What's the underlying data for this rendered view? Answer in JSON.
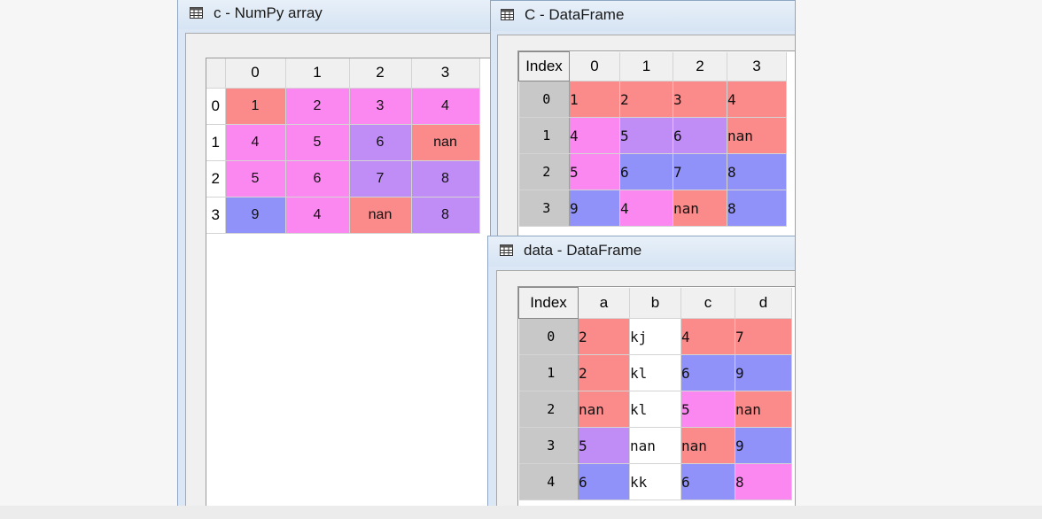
{
  "colors": {
    "red": "#fb8a8a",
    "pink": "#fb88f0",
    "purple": "#c08cf6",
    "blue": "#9191fa",
    "white": "#ffffff"
  },
  "windows": {
    "numpy": {
      "title": "c - NumPy array",
      "icon": "table-icon",
      "columns": [
        "0",
        "1",
        "2",
        "3"
      ],
      "row_labels": [
        "0",
        "1",
        "2",
        "3"
      ],
      "rows": [
        [
          {
            "v": "1",
            "c": "red"
          },
          {
            "v": "2",
            "c": "pink"
          },
          {
            "v": "3",
            "c": "pink"
          },
          {
            "v": "4",
            "c": "pink"
          }
        ],
        [
          {
            "v": "4",
            "c": "pink"
          },
          {
            "v": "5",
            "c": "pink"
          },
          {
            "v": "6",
            "c": "purple"
          },
          {
            "v": "nan",
            "c": "red"
          }
        ],
        [
          {
            "v": "5",
            "c": "pink"
          },
          {
            "v": "6",
            "c": "pink"
          },
          {
            "v": "7",
            "c": "purple"
          },
          {
            "v": "8",
            "c": "purple"
          }
        ],
        [
          {
            "v": "9",
            "c": "blue"
          },
          {
            "v": "4",
            "c": "pink"
          },
          {
            "v": "nan",
            "c": "red"
          },
          {
            "v": "8",
            "c": "purple"
          }
        ]
      ]
    },
    "cframe": {
      "title": "C - DataFrame",
      "icon": "table-icon",
      "index_header": "Index",
      "columns": [
        "0",
        "1",
        "2",
        "3"
      ],
      "row_labels": [
        "0",
        "1",
        "2",
        "3"
      ],
      "rows": [
        [
          {
            "v": "1",
            "c": "red"
          },
          {
            "v": "2",
            "c": "red"
          },
          {
            "v": "3",
            "c": "red"
          },
          {
            "v": "4",
            "c": "red"
          }
        ],
        [
          {
            "v": "4",
            "c": "pink"
          },
          {
            "v": "5",
            "c": "purple"
          },
          {
            "v": "6",
            "c": "purple"
          },
          {
            "v": "nan",
            "c": "red"
          }
        ],
        [
          {
            "v": "5",
            "c": "pink"
          },
          {
            "v": "6",
            "c": "blue"
          },
          {
            "v": "7",
            "c": "blue"
          },
          {
            "v": "8",
            "c": "blue"
          }
        ],
        [
          {
            "v": "9",
            "c": "blue"
          },
          {
            "v": "4",
            "c": "pink"
          },
          {
            "v": "nan",
            "c": "red"
          },
          {
            "v": "8",
            "c": "blue"
          }
        ]
      ]
    },
    "data": {
      "title": "data - DataFrame",
      "icon": "table-icon",
      "index_header": "Index",
      "columns": [
        "a",
        "b",
        "c",
        "d"
      ],
      "row_labels": [
        "0",
        "1",
        "2",
        "3",
        "4"
      ],
      "rows": [
        [
          {
            "v": "2",
            "c": "red"
          },
          {
            "v": "kj",
            "c": "white"
          },
          {
            "v": "4",
            "c": "red"
          },
          {
            "v": "7",
            "c": "red"
          }
        ],
        [
          {
            "v": "2",
            "c": "red"
          },
          {
            "v": "kl",
            "c": "white"
          },
          {
            "v": "6",
            "c": "blue"
          },
          {
            "v": "9",
            "c": "blue"
          }
        ],
        [
          {
            "v": "nan",
            "c": "red"
          },
          {
            "v": "kl",
            "c": "white"
          },
          {
            "v": "5",
            "c": "pink"
          },
          {
            "v": "nan",
            "c": "red"
          }
        ],
        [
          {
            "v": "5",
            "c": "purple"
          },
          {
            "v": "nan",
            "c": "white"
          },
          {
            "v": "nan",
            "c": "red"
          },
          {
            "v": "9",
            "c": "blue"
          }
        ],
        [
          {
            "v": "6",
            "c": "blue"
          },
          {
            "v": "kk",
            "c": "white"
          },
          {
            "v": "6",
            "c": "blue"
          },
          {
            "v": "8",
            "c": "pink"
          }
        ]
      ]
    }
  }
}
